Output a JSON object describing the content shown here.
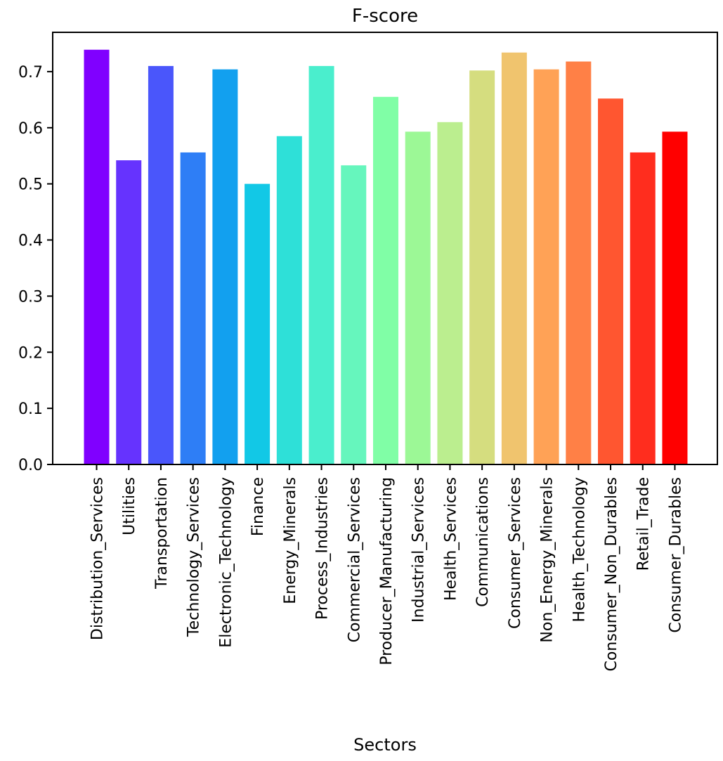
{
  "chart_data": {
    "type": "bar",
    "title": "F-score",
    "xlabel": "Sectors",
    "ylabel": "",
    "ylim": [
      0,
      0.77
    ],
    "yticks": [
      "0.0",
      "0.1",
      "0.2",
      "0.3",
      "0.4",
      "0.5",
      "0.6",
      "0.7"
    ],
    "grid": false,
    "categories": [
      "Distribution_Services",
      "Utilities",
      "Transportation",
      "Technology_Services",
      "Electronic_Technology",
      "Finance",
      "Energy_Minerals",
      "Process_Industries",
      "Commercial_Services",
      "Producer_Manufacturing",
      "Industrial_Services",
      "Health_Services",
      "Communications",
      "Consumer_Services",
      "Non_Energy_Minerals",
      "Health_Technology",
      "Consumer_Non_Durables",
      "Retail_Trade",
      "Consumer_Durables"
    ],
    "values": [
      0.739,
      0.542,
      0.71,
      0.556,
      0.704,
      0.5,
      0.585,
      0.71,
      0.533,
      0.655,
      0.593,
      0.61,
      0.702,
      0.734,
      0.704,
      0.718,
      0.652,
      0.556,
      0.593
    ],
    "colors": [
      "#8000ff",
      "#6633fe",
      "#4a56fb",
      "#2e7ef6",
      "#12a0ef",
      "#12c8e6",
      "#2ee0d8",
      "#4aeecd",
      "#66f6bd",
      "#80fea6",
      "#9cf896",
      "#bbee8f",
      "#d5dd7f",
      "#f0c46e",
      "#ffa256",
      "#ff8046",
      "#ff5630",
      "#ff2d1e",
      "#ff0000"
    ]
  }
}
